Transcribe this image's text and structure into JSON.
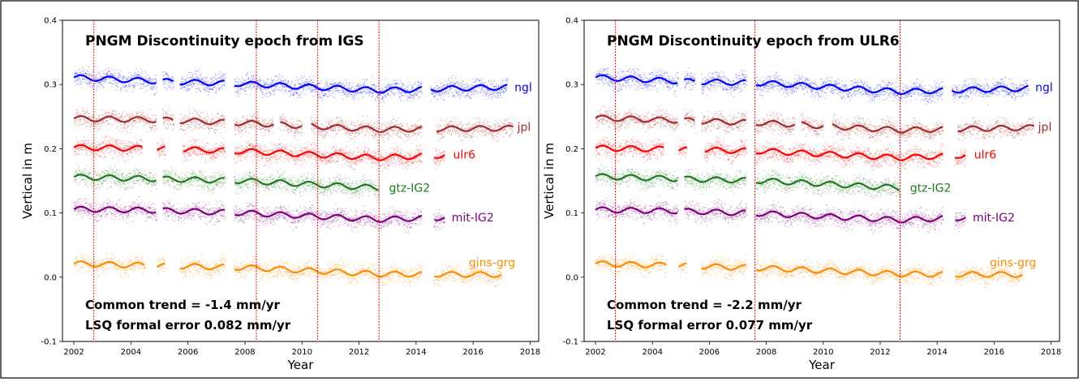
{
  "chart_data": [
    {
      "type": "scatter",
      "title": "PNGM Discontinuity epoch from IGS",
      "xlabel": "Year",
      "ylabel": "Vertical in m",
      "xlim": [
        2001.6,
        2018.3
      ],
      "ylim": [
        -0.1,
        0.4
      ],
      "xticks": [
        2002,
        2004,
        2006,
        2008,
        2010,
        2012,
        2014,
        2016,
        2018
      ],
      "yticks": [
        -0.1,
        0.0,
        0.1,
        0.2,
        0.3,
        0.4
      ],
      "xtick_labels": [
        "2002",
        "2004",
        "2006",
        "2008",
        "2010",
        "2012",
        "2014",
        "2016",
        "2018"
      ],
      "ytick_labels": [
        "-0.1",
        "0.0",
        "0.1",
        "0.2",
        "0.3",
        "0.4"
      ],
      "discontinuities": [
        2002.7,
        2008.4,
        2010.55,
        2012.7
      ],
      "annotations": [
        "Common trend = -1.4 mm/yr",
        "LSQ formal error 0.082 mm/yr"
      ],
      "grid": false,
      "series": [
        {
          "name": "ngl",
          "color": "#0000ff",
          "fit": [
            [
              2002.0,
              0.311
            ],
            [
              2005.0,
              0.305
            ],
            [
              2008.0,
              0.301
            ],
            [
              2012.7,
              0.291
            ],
            [
              2017.2,
              0.296
            ]
          ],
          "gaps": [
            [
              2004.9,
              2005.1
            ],
            [
              2005.5,
              2005.7
            ],
            [
              2007.3,
              2007.6
            ],
            [
              2014.2,
              2014.5
            ]
          ]
        },
        {
          "name": "jpl",
          "color": "#a52a2a",
          "fit": [
            [
              2002.0,
              0.247
            ],
            [
              2005.0,
              0.245
            ],
            [
              2008.0,
              0.24
            ],
            [
              2012.7,
              0.23
            ],
            [
              2017.4,
              0.232
            ]
          ],
          "gaps": [
            [
              2004.9,
              2005.1
            ],
            [
              2005.5,
              2005.7
            ],
            [
              2007.3,
              2007.6
            ],
            [
              2009.0,
              2009.2
            ],
            [
              2010.0,
              2010.3
            ],
            [
              2014.2,
              2014.7
            ]
          ]
        },
        {
          "name": "ulr6",
          "color": "#ff0000",
          "fit": [
            [
              2002.0,
              0.202
            ],
            [
              2005.0,
              0.2
            ],
            [
              2008.0,
              0.196
            ],
            [
              2012.7,
              0.186
            ],
            [
              2015.0,
              0.19
            ]
          ],
          "gaps": [
            [
              2004.4,
              2004.9
            ],
            [
              2005.2,
              2005.8
            ],
            [
              2007.3,
              2007.6
            ],
            [
              2014.2,
              2014.6
            ]
          ]
        },
        {
          "name": "gtz-IG2",
          "color": "#1e7b1e",
          "fit": [
            [
              2002.0,
              0.156
            ],
            [
              2005.0,
              0.153
            ],
            [
              2008.0,
              0.15
            ],
            [
              2012.7,
              0.139
            ]
          ],
          "gaps": [
            [
              2004.9,
              2005.1
            ],
            [
              2007.3,
              2007.6
            ]
          ]
        },
        {
          "name": "mit-IG2",
          "color": "#800080",
          "fit": [
            [
              2002.0,
              0.106
            ],
            [
              2005.0,
              0.104
            ],
            [
              2008.0,
              0.1
            ],
            [
              2012.7,
              0.09
            ],
            [
              2015.0,
              0.093
            ]
          ],
          "gaps": [
            [
              2004.9,
              2005.1
            ],
            [
              2007.3,
              2007.6
            ],
            [
              2014.2,
              2014.6
            ]
          ]
        },
        {
          "name": "gins-grg",
          "color": "#ff8c00",
          "fit": [
            [
              2002.0,
              0.021
            ],
            [
              2005.0,
              0.018
            ],
            [
              2008.0,
              0.015
            ],
            [
              2012.7,
              0.005
            ],
            [
              2017.0,
              0.004
            ]
          ],
          "gaps": [
            [
              2004.5,
              2004.9
            ],
            [
              2005.2,
              2005.7
            ],
            [
              2007.3,
              2007.6
            ],
            [
              2014.2,
              2014.6
            ]
          ]
        }
      ]
    },
    {
      "type": "scatter",
      "title": "PNGM Discontinuity epoch from ULR6",
      "xlabel": "Year",
      "ylabel": "Vertical in m",
      "xlim": [
        2001.6,
        2018.3
      ],
      "ylim": [
        -0.1,
        0.4
      ],
      "xticks": [
        2002,
        2004,
        2006,
        2008,
        2010,
        2012,
        2014,
        2016,
        2018
      ],
      "yticks": [
        -0.1,
        0.0,
        0.1,
        0.2,
        0.3,
        0.4
      ],
      "xtick_labels": [
        "2002",
        "2004",
        "2006",
        "2008",
        "2010",
        "2012",
        "2014",
        "2016",
        "2018"
      ],
      "ytick_labels": [
        "-0.1",
        "0.0",
        "0.1",
        "0.2",
        "0.3",
        "0.4"
      ],
      "discontinuities": [
        2002.7,
        2007.6,
        2012.7
      ],
      "annotations": [
        "Common trend = -2.2 mm/yr",
        "LSQ formal error 0.077 mm/yr"
      ],
      "grid": false,
      "series": [
        {
          "name": "ngl",
          "color": "#0000ff",
          "fit": [
            [
              2002.0,
              0.311
            ],
            [
              2005.0,
              0.305
            ],
            [
              2008.0,
              0.302
            ],
            [
              2012.7,
              0.289
            ],
            [
              2017.2,
              0.294
            ]
          ],
          "gaps": [
            [
              2004.9,
              2005.1
            ],
            [
              2005.5,
              2005.7
            ],
            [
              2007.3,
              2007.6
            ],
            [
              2014.2,
              2014.5
            ]
          ]
        },
        {
          "name": "jpl",
          "color": "#a52a2a",
          "fit": [
            [
              2002.0,
              0.248
            ],
            [
              2005.0,
              0.244
            ],
            [
              2008.0,
              0.24
            ],
            [
              2012.7,
              0.229
            ],
            [
              2017.4,
              0.233
            ]
          ],
          "gaps": [
            [
              2004.9,
              2005.1
            ],
            [
              2005.5,
              2005.7
            ],
            [
              2007.3,
              2007.6
            ],
            [
              2009.0,
              2009.2
            ],
            [
              2010.0,
              2010.3
            ],
            [
              2014.2,
              2014.7
            ]
          ]
        },
        {
          "name": "ulr6",
          "color": "#ff0000",
          "fit": [
            [
              2002.0,
              0.201
            ],
            [
              2005.0,
              0.199
            ],
            [
              2008.0,
              0.196
            ],
            [
              2012.7,
              0.186
            ],
            [
              2015.0,
              0.19
            ]
          ],
          "gaps": [
            [
              2004.4,
              2004.9
            ],
            [
              2005.2,
              2005.8
            ],
            [
              2007.3,
              2007.6
            ],
            [
              2014.2,
              2014.6
            ]
          ]
        },
        {
          "name": "gtz-IG2",
          "color": "#1e7b1e",
          "fit": [
            [
              2002.0,
              0.157
            ],
            [
              2005.0,
              0.153
            ],
            [
              2008.0,
              0.15
            ],
            [
              2012.7,
              0.139
            ]
          ],
          "gaps": [
            [
              2004.9,
              2005.1
            ],
            [
              2007.3,
              2007.6
            ]
          ]
        },
        {
          "name": "mit-IG2",
          "color": "#800080",
          "fit": [
            [
              2002.0,
              0.105
            ],
            [
              2005.0,
              0.103
            ],
            [
              2008.0,
              0.099
            ],
            [
              2012.7,
              0.089
            ],
            [
              2015.0,
              0.093
            ]
          ],
          "gaps": [
            [
              2004.9,
              2005.1
            ],
            [
              2007.3,
              2007.6
            ],
            [
              2014.2,
              2014.6
            ]
          ]
        },
        {
          "name": "gins-grg",
          "color": "#ff8c00",
          "fit": [
            [
              2002.0,
              0.021
            ],
            [
              2005.0,
              0.018
            ],
            [
              2008.0,
              0.014
            ],
            [
              2012.7,
              0.005
            ],
            [
              2017.0,
              0.004
            ]
          ],
          "gaps": [
            [
              2004.5,
              2004.9
            ],
            [
              2005.2,
              2005.7
            ],
            [
              2007.3,
              2007.6
            ],
            [
              2014.2,
              2014.6
            ]
          ]
        }
      ]
    }
  ]
}
